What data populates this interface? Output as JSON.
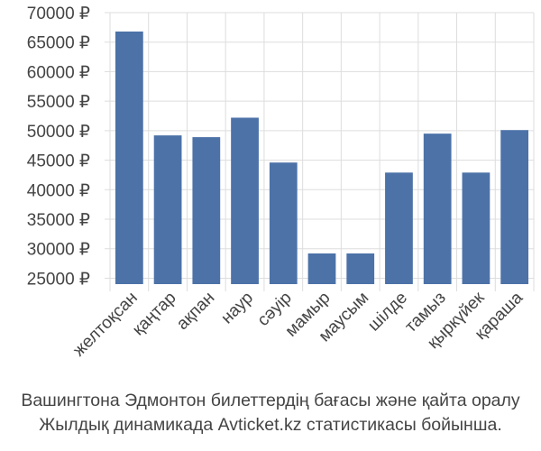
{
  "chart_data": {
    "type": "bar",
    "categories": [
      "желтоқсан",
      "қаңтар",
      "ақпан",
      "наур",
      "сәуір",
      "мамыр",
      "маусым",
      "шілде",
      "тамыз",
      "қыркүйек",
      "қараша"
    ],
    "values": [
      66800,
      49200,
      48900,
      52200,
      44600,
      29200,
      29200,
      42900,
      49500,
      42900,
      50100
    ],
    "ylim": [
      24000,
      70000
    ],
    "yticks": [
      25000,
      30000,
      35000,
      40000,
      45000,
      50000,
      55000,
      60000,
      65000,
      70000
    ],
    "ytick_labels": [
      "25000 ₽",
      "30000 ₽",
      "35000 ₽",
      "40000 ₽",
      "45000 ₽",
      "50000 ₽",
      "55000 ₽",
      "60000 ₽",
      "65000 ₽",
      "70000 ₽"
    ],
    "grid": true,
    "bar_color": "#4c72a8",
    "grid_color": "#dddddd"
  },
  "caption": {
    "line1": "Вашингтона Эдмонтон билеттердің бағасы және қайта оралу",
    "line2": "Жылдық динамикада Avticket.kz статистикасы бойынша."
  }
}
